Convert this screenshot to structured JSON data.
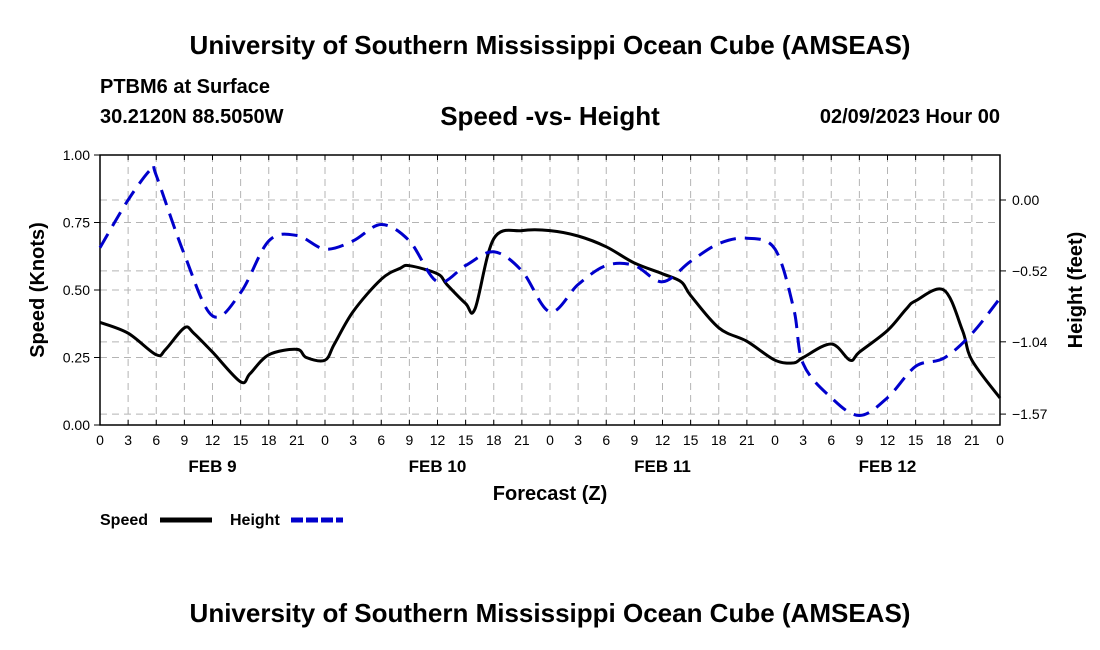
{
  "header": {
    "title": "University of Southern Mississippi Ocean Cube (AMSEAS)",
    "station": "PTBM6 at Surface",
    "coordinates": "30.2120N  88.5050W",
    "subtitle": "Speed -vs- Height",
    "datetime": "02/09/2023 Hour 00"
  },
  "footer": {
    "title": "University of Southern Mississippi Ocean Cube (AMSEAS)"
  },
  "chart_data": {
    "type": "line",
    "title": "Speed -vs- Height",
    "xlabel": "Forecast (Z)",
    "ylabel_left": "Speed (Knots)",
    "ylabel_right": "Height (feet)",
    "x_range_hours": [
      0,
      96
    ],
    "x_tick_labels": [
      "0",
      "3",
      "6",
      "9",
      "12",
      "15",
      "18",
      "21",
      "0",
      "3",
      "6",
      "9",
      "12",
      "15",
      "18",
      "21",
      "0",
      "3",
      "6",
      "9",
      "12",
      "15",
      "18",
      "21",
      "0",
      "3",
      "6",
      "9",
      "12",
      "15",
      "18",
      "21",
      "0"
    ],
    "day_labels": [
      {
        "label": "FEB 9",
        "hour": 12
      },
      {
        "label": "FEB 10",
        "hour": 36
      },
      {
        "label": "FEB 11",
        "hour": 60
      },
      {
        "label": "FEB 12",
        "hour": 84
      }
    ],
    "ylim_left": [
      0,
      1
    ],
    "yticks_left": [
      "0.00",
      "0.25",
      "0.50",
      "0.75",
      "1.00"
    ],
    "ylim_right": [
      -1.65,
      0.33
    ],
    "yticks_right": [
      {
        "label": "0.00",
        "value": 0.0
      },
      {
        "label": "−0.52",
        "value": -0.52
      },
      {
        "label": "−1.04",
        "value": -1.04
      },
      {
        "label": "−1.57",
        "value": -1.57
      }
    ],
    "grid": true,
    "legend": [
      {
        "label": "Speed",
        "color": "#000000",
        "style": "solid"
      },
      {
        "label": "Height",
        "color": "#0000cc",
        "style": "dashed"
      }
    ],
    "series": [
      {
        "name": "Speed",
        "axis": "left",
        "color": "#000000",
        "x": [
          0,
          3,
          6,
          7,
          9,
          10,
          12,
          15,
          16,
          18,
          21,
          22,
          24,
          25,
          27,
          30,
          32,
          33,
          36,
          37,
          39,
          40,
          42,
          45,
          48,
          51,
          54,
          57,
          60,
          62,
          63,
          66,
          69,
          72,
          74,
          75,
          78,
          80,
          81,
          84,
          86,
          87,
          90,
          92,
          93,
          96
        ],
        "y": [
          0.38,
          0.34,
          0.26,
          0.28,
          0.36,
          0.34,
          0.27,
          0.16,
          0.19,
          0.26,
          0.28,
          0.25,
          0.24,
          0.3,
          0.42,
          0.54,
          0.58,
          0.59,
          0.56,
          0.52,
          0.45,
          0.43,
          0.69,
          0.72,
          0.72,
          0.7,
          0.66,
          0.6,
          0.56,
          0.53,
          0.48,
          0.36,
          0.31,
          0.24,
          0.23,
          0.25,
          0.3,
          0.24,
          0.27,
          0.35,
          0.43,
          0.46,
          0.5,
          0.35,
          0.24,
          0.1
        ]
      },
      {
        "name": "Height",
        "axis": "right",
        "color": "#0000cc",
        "x": [
          0,
          3,
          5.5,
          6,
          9,
          12,
          15,
          18,
          21,
          24,
          27,
          30,
          33,
          36,
          39,
          42,
          45,
          48,
          51,
          54,
          57,
          60,
          63,
          66,
          69,
          72,
          74,
          75,
          78,
          81,
          84,
          87,
          90,
          93,
          96
        ],
        "y": [
          -0.35,
          0.0,
          0.23,
          0.18,
          -0.4,
          -0.85,
          -0.68,
          -0.3,
          -0.26,
          -0.36,
          -0.3,
          -0.18,
          -0.3,
          -0.6,
          -0.48,
          -0.38,
          -0.52,
          -0.82,
          -0.62,
          -0.48,
          -0.48,
          -0.6,
          -0.45,
          -0.32,
          -0.28,
          -0.36,
          -0.8,
          -1.2,
          -1.45,
          -1.58,
          -1.45,
          -1.22,
          -1.16,
          -0.98,
          -0.72
        ]
      }
    ]
  }
}
